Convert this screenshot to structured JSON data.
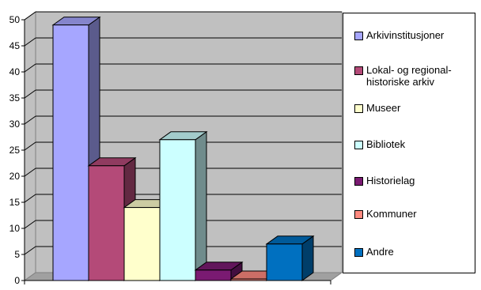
{
  "chart_data": {
    "type": "bar",
    "title": "",
    "xlabel": "",
    "ylabel": "",
    "ylim": [
      0,
      50
    ],
    "yticks": [
      "0",
      "5",
      "10",
      "15",
      "20",
      "25",
      "30",
      "35",
      "40",
      "45",
      "50"
    ],
    "grid": true,
    "legend_position": "right",
    "series": [
      {
        "name": "Arkivinstitusjoner",
        "value": 49,
        "color": "#a6a6ff"
      },
      {
        "name": "Lokal- og regional-\nhistoriske arkiv",
        "value": 22,
        "color": "#b44a78"
      },
      {
        "name": "Museer",
        "value": 14,
        "color": "#ffffcc"
      },
      {
        "name": "Bibliotek",
        "value": 27,
        "color": "#ccffff"
      },
      {
        "name": "Historielag",
        "value": 2,
        "color": "#7a1a72"
      },
      {
        "name": "Kommuner",
        "value": 0.3,
        "color": "#ff8a80"
      },
      {
        "name": "Andre",
        "value": 7,
        "color": "#0070c0"
      }
    ]
  }
}
